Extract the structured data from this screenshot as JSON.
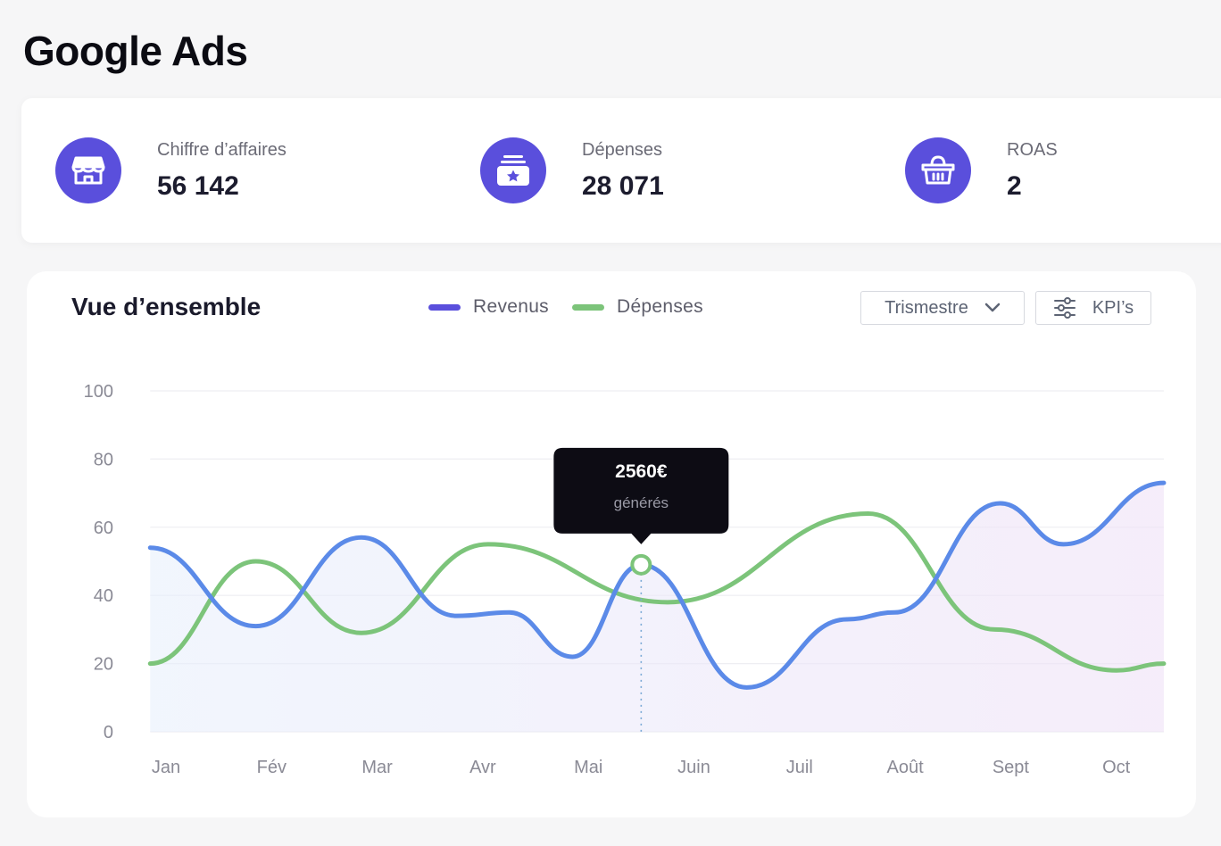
{
  "page": {
    "title": "Google Ads"
  },
  "kpis": [
    {
      "label": "Chiffre d’affaires",
      "value": "56 142",
      "icon": "storefront-icon"
    },
    {
      "label": "Dépenses",
      "value": "28 071",
      "icon": "wallet-star-icon"
    },
    {
      "label": "ROAS",
      "value": "2",
      "icon": "basket-icon"
    }
  ],
  "overview": {
    "title": "Vue d’ensemble",
    "period_label": "Trismestre",
    "kpi_button_label": "KPI’s"
  },
  "colors": {
    "accent": "#5a4fdc",
    "revenue": "#5b8ae8",
    "revenue_legend": "#5a4fdc",
    "expenses": "#7cc47a"
  },
  "chart_data": {
    "type": "line",
    "categories": [
      "Jan",
      "Fév",
      "Mar",
      "Avr",
      "Mai",
      "Juin",
      "Juil",
      "Août",
      "Sept",
      "Oct"
    ],
    "x_range": [
      0,
      9.45
    ],
    "ylim": [
      0,
      100
    ],
    "yticks": [
      0,
      20,
      40,
      60,
      80,
      100
    ],
    "grid": true,
    "legend_position": "top-center",
    "series": [
      {
        "name": "Revenus",
        "x": [
          -0.15,
          0.85,
          1.85,
          2.75,
          3.25,
          3.85,
          4.5,
          5.5,
          6.45,
          6.9,
          7.9,
          8.5,
          9.45
        ],
        "values": [
          54,
          31,
          57,
          34,
          35,
          22,
          49,
          13,
          33,
          35,
          67,
          55,
          73
        ]
      },
      {
        "name": "Dépenses",
        "x": [
          -0.15,
          0.85,
          1.85,
          3.05,
          4.75,
          6.65,
          7.85,
          9.0,
          9.45
        ],
        "values": [
          20,
          50,
          29,
          55,
          38,
          64,
          30,
          18,
          20
        ]
      }
    ],
    "highlight": {
      "series": "Revenus",
      "x": 4.5,
      "value": 49,
      "tooltip_value": "2560€",
      "tooltip_caption": "générés"
    }
  }
}
